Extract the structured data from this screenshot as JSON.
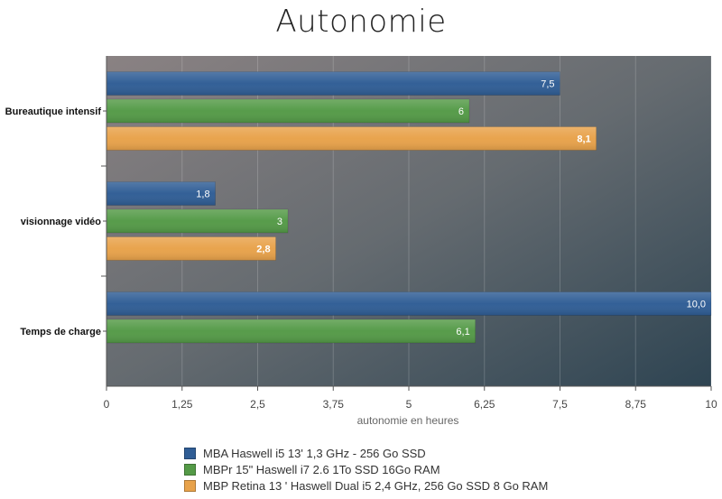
{
  "chart_data": {
    "type": "bar",
    "orientation": "horizontal",
    "title": "Autonomie",
    "xlabel": "autonomie en heures",
    "ylabel": "",
    "xlim": [
      0,
      10
    ],
    "x_ticks": [
      "0",
      "1,25",
      "2,5",
      "3,75",
      "5",
      "6,25",
      "7,5",
      "8,75",
      "10"
    ],
    "categories": [
      "Bureautique intensif",
      "visionnage vidéo",
      "Temps de charge"
    ],
    "series": [
      {
        "name": "MBA Haswell i5 13' 1,3 GHz - 256 Go SSD",
        "color": "#2f5d95",
        "values": [
          7.5,
          1.8,
          10.0
        ],
        "labels": [
          "7,5",
          "1,8",
          "10,0"
        ]
      },
      {
        "name": "MBPr 15\" Haswell i7 2.6 1To SSD 16Go RAM",
        "color": "#549a47",
        "values": [
          6,
          3,
          6.1
        ],
        "labels": [
          "6",
          "3",
          "6,1"
        ]
      },
      {
        "name": "MBP Retina 13 ' Haswell Dual i5 2,4 GHz, 256 Go SSD 8 Go RAM",
        "color": "#e8a24a",
        "values": [
          8.1,
          2.8,
          null
        ],
        "labels": [
          "8,1",
          "2,8",
          ""
        ]
      }
    ],
    "grid": true,
    "legend_position": "bottom"
  }
}
